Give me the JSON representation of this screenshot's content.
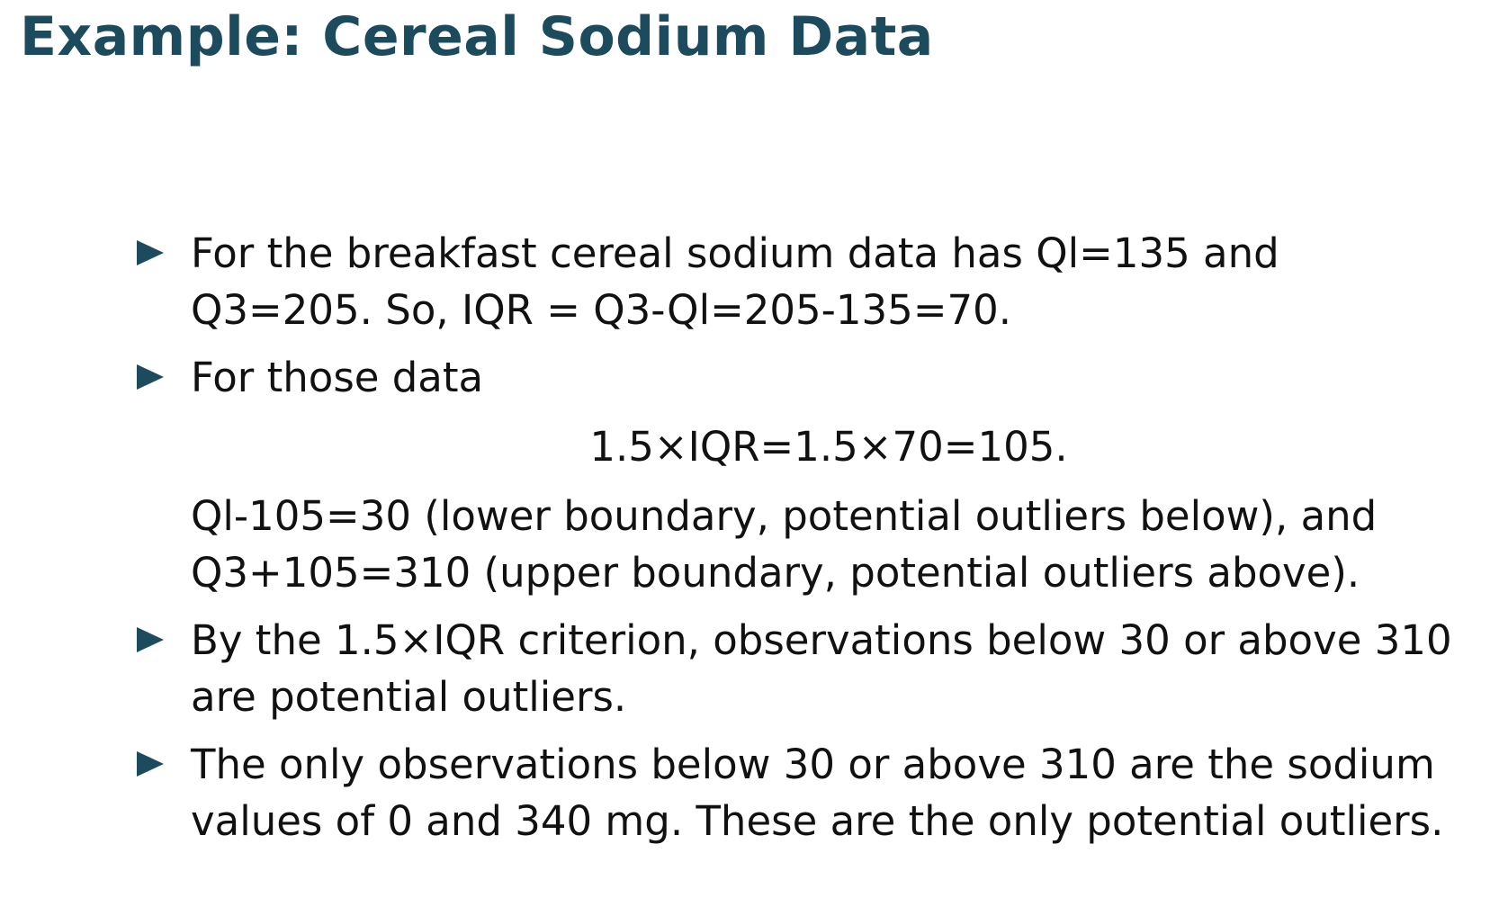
{
  "slide": {
    "title": "Example: Cereal Sodium Data",
    "bullets": [
      {
        "lines": [
          "For the breakfast cereal sodium data has Ql=135 and",
          "Q3=205. So, IQR = Q3-Ql=205-135=70."
        ]
      },
      {
        "lines": [
          "For those data"
        ],
        "equation": "1.5×IQR=1.5×70=105.",
        "after_lines": [
          "Ql-105=30 (lower boundary, potential outliers below), and",
          "Q3+105=310 (upper boundary, potential outliers above)."
        ]
      },
      {
        "lines": [
          "By the 1.5×IQR criterion, observations below 30 or above 310",
          "are potential outliers."
        ]
      },
      {
        "lines": [
          "The only observations below 30 or above 310 are the sodium",
          "values of 0 and 340 mg. These are the only potential outliers."
        ]
      }
    ]
  },
  "colors": {
    "title": "#1c4b5e",
    "bullet_marker": "#1c4b5e",
    "text": "#111111",
    "background": "#ffffff"
  },
  "icons": {
    "bullet_marker": "triangle-right-icon"
  }
}
